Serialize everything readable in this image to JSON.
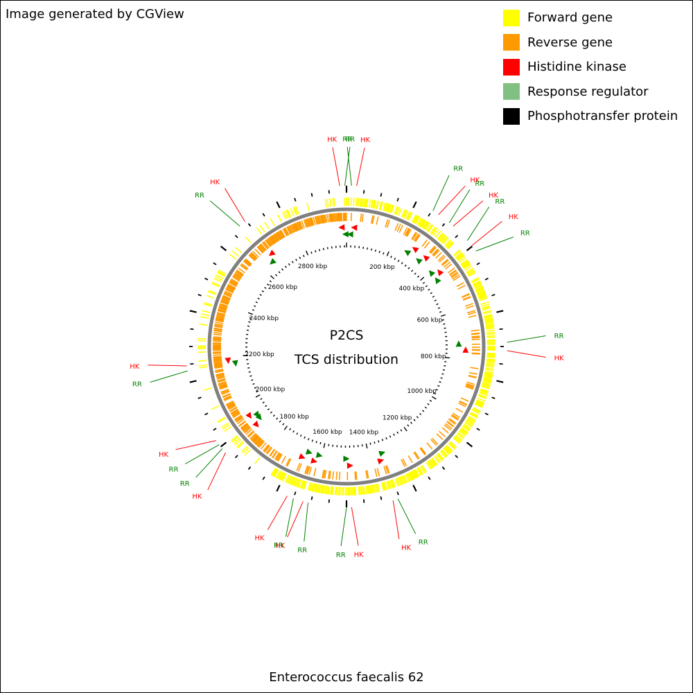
{
  "credit": "Image generated by CGView",
  "legend": [
    {
      "label": "Forward gene",
      "color": "#ffff00"
    },
    {
      "label": "Reverse gene",
      "color": "#ff9900"
    },
    {
      "label": "Histidine kinase",
      "color": "#ff0000"
    },
    {
      "label": "Response regulator",
      "color": "#80c080"
    },
    {
      "label": "Phosphotransfer protein",
      "color": "#000000"
    }
  ],
  "center": {
    "title": "P2CS",
    "subtitle": "TCS distribution"
  },
  "organism": "Enterococcus faecalis 62",
  "map": {
    "genome_length_kbp": 2990,
    "ruler_labels": [
      "200 kbp",
      "400 kbp",
      "600 kbp",
      "800 kbp",
      "1000 kbp",
      "1200 kbp",
      "1400 kbp",
      "1600 kbp",
      "1800 kbp",
      "2000 kbp",
      "2200 kbp",
      "2400 kbp",
      "2600 kbp",
      "2800 kbp"
    ],
    "ruler_positions_kbp": [
      200,
      400,
      600,
      800,
      1000,
      1200,
      1400,
      1600,
      1800,
      2000,
      2200,
      2400,
      2600,
      2800
    ],
    "tcs_features": [
      {
        "kbp": 2970,
        "type": "HK"
      },
      {
        "kbp": 2985,
        "type": "RR"
      },
      {
        "kbp": 15,
        "type": "RR"
      },
      {
        "kbp": 30,
        "type": "HK"
      },
      {
        "kbp": 270,
        "type": "RR"
      },
      {
        "kbp": 290,
        "type": "HK"
      },
      {
        "kbp": 330,
        "type": "RR"
      },
      {
        "kbp": 345,
        "type": "HK"
      },
      {
        "kbp": 405,
        "type": "RR"
      },
      {
        "kbp": 425,
        "type": "HK"
      },
      {
        "kbp": 445,
        "type": "RR"
      },
      {
        "kbp": 735,
        "type": "RR"
      },
      {
        "kbp": 760,
        "type": "HK"
      },
      {
        "kbp": 1340,
        "type": "RR"
      },
      {
        "kbp": 1355,
        "type": "HK"
      },
      {
        "kbp": 1480,
        "type": "HK"
      },
      {
        "kbp": 1495,
        "type": "RR"
      },
      {
        "kbp": 1610,
        "type": "RR"
      },
      {
        "kbp": 1625,
        "type": "HK"
      },
      {
        "kbp": 1655,
        "type": "RR"
      },
      {
        "kbp": 1675,
        "type": "HK"
      },
      {
        "kbp": 1900,
        "type": "HK"
      },
      {
        "kbp": 1915,
        "type": "RR"
      },
      {
        "kbp": 1930,
        "type": "RR"
      },
      {
        "kbp": 1945,
        "type": "HK"
      },
      {
        "kbp": 2170,
        "type": "RR"
      },
      {
        "kbp": 2185,
        "type": "HK"
      },
      {
        "kbp": 2645,
        "type": "RR"
      },
      {
        "kbp": 2665,
        "type": "HK"
      }
    ]
  }
}
